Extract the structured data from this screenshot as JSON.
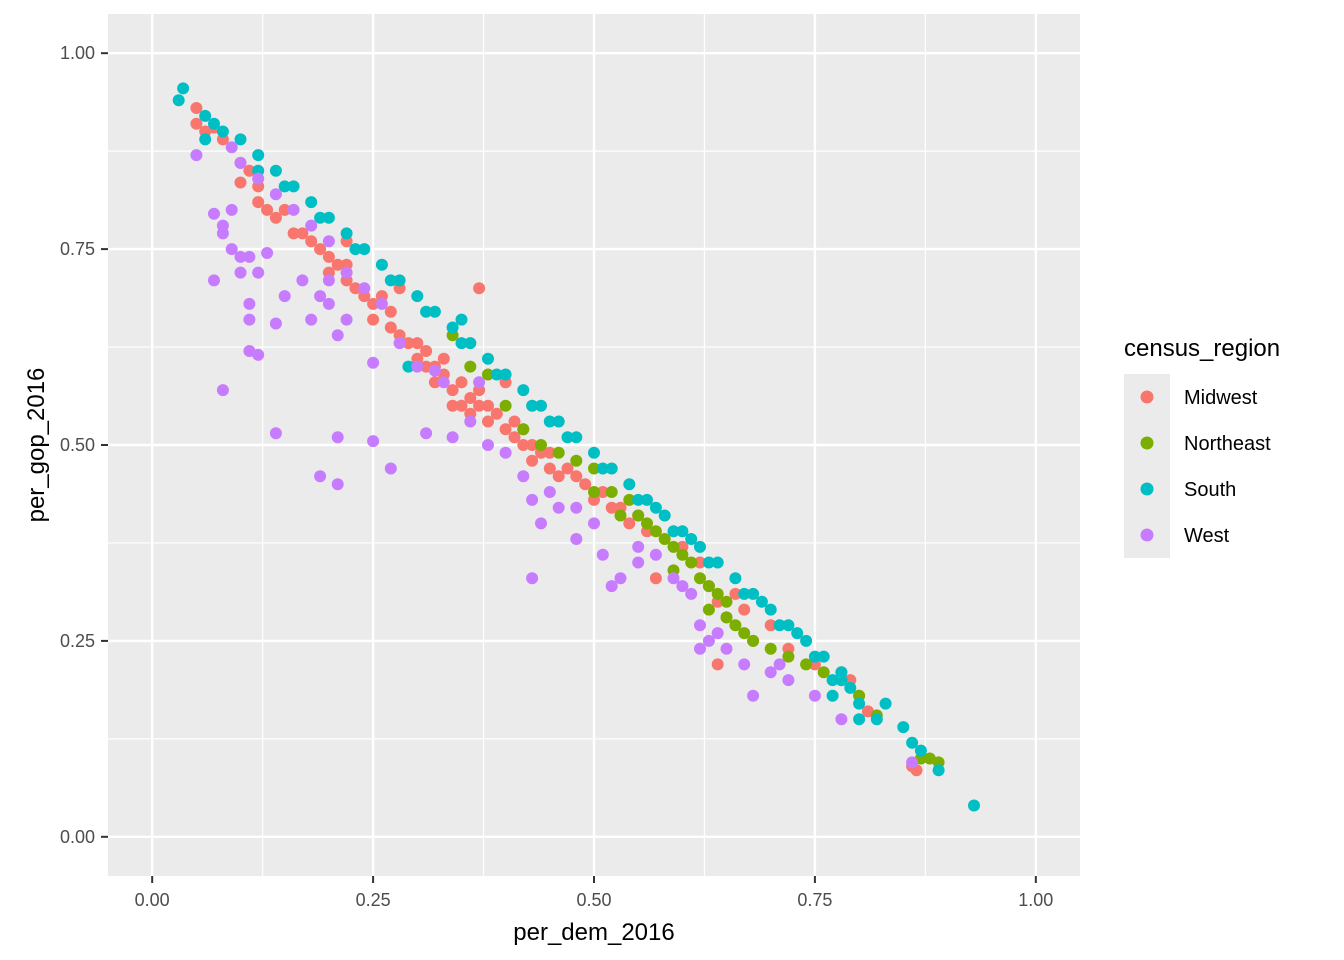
{
  "chart_data": {
    "type": "scatter",
    "title": "",
    "xlabel": "per_dem_2016",
    "ylabel": "per_gop_2016",
    "xlim": [
      -0.05,
      1.05
    ],
    "ylim": [
      -0.05,
      1.05
    ],
    "x_ticks": [
      0.0,
      0.25,
      0.5,
      0.75,
      1.0
    ],
    "x_tick_labels": [
      "0.00",
      "0.25",
      "0.50",
      "0.75",
      "1.00"
    ],
    "y_ticks": [
      0.0,
      0.25,
      0.5,
      0.75,
      1.0
    ],
    "y_tick_labels": [
      "0.00",
      "0.25",
      "0.50",
      "0.75",
      "1.00"
    ],
    "grid": true,
    "legend": {
      "title": "census_region",
      "position": "right"
    },
    "series": [
      {
        "name": "Midwest",
        "color": "#F8766D",
        "points": [
          [
            0.05,
            0.93
          ],
          [
            0.05,
            0.91
          ],
          [
            0.06,
            0.9
          ],
          [
            0.07,
            0.905
          ],
          [
            0.08,
            0.89
          ],
          [
            0.1,
            0.86
          ],
          [
            0.1,
            0.835
          ],
          [
            0.11,
            0.85
          ],
          [
            0.12,
            0.83
          ],
          [
            0.12,
            0.81
          ],
          [
            0.13,
            0.8
          ],
          [
            0.14,
            0.79
          ],
          [
            0.15,
            0.8
          ],
          [
            0.16,
            0.77
          ],
          [
            0.17,
            0.77
          ],
          [
            0.18,
            0.76
          ],
          [
            0.19,
            0.75
          ],
          [
            0.2,
            0.74
          ],
          [
            0.2,
            0.72
          ],
          [
            0.21,
            0.73
          ],
          [
            0.22,
            0.71
          ],
          [
            0.22,
            0.73
          ],
          [
            0.23,
            0.7
          ],
          [
            0.24,
            0.69
          ],
          [
            0.25,
            0.68
          ],
          [
            0.25,
            0.66
          ],
          [
            0.26,
            0.69
          ],
          [
            0.27,
            0.67
          ],
          [
            0.27,
            0.65
          ],
          [
            0.28,
            0.64
          ],
          [
            0.29,
            0.63
          ],
          [
            0.3,
            0.63
          ],
          [
            0.3,
            0.61
          ],
          [
            0.31,
            0.62
          ],
          [
            0.31,
            0.6
          ],
          [
            0.32,
            0.6
          ],
          [
            0.32,
            0.58
          ],
          [
            0.33,
            0.59
          ],
          [
            0.33,
            0.61
          ],
          [
            0.34,
            0.57
          ],
          [
            0.35,
            0.58
          ],
          [
            0.35,
            0.55
          ],
          [
            0.36,
            0.56
          ],
          [
            0.36,
            0.54
          ],
          [
            0.37,
            0.55
          ],
          [
            0.37,
            0.57
          ],
          [
            0.38,
            0.53
          ],
          [
            0.38,
            0.55
          ],
          [
            0.39,
            0.54
          ],
          [
            0.4,
            0.52
          ],
          [
            0.41,
            0.53
          ],
          [
            0.41,
            0.51
          ],
          [
            0.42,
            0.52
          ],
          [
            0.42,
            0.5
          ],
          [
            0.43,
            0.5
          ],
          [
            0.43,
            0.48
          ],
          [
            0.44,
            0.49
          ],
          [
            0.45,
            0.47
          ],
          [
            0.45,
            0.49
          ],
          [
            0.46,
            0.46
          ],
          [
            0.47,
            0.47
          ],
          [
            0.48,
            0.46
          ],
          [
            0.49,
            0.45
          ],
          [
            0.5,
            0.43
          ],
          [
            0.51,
            0.44
          ],
          [
            0.52,
            0.42
          ],
          [
            0.53,
            0.42
          ],
          [
            0.54,
            0.4
          ],
          [
            0.55,
            0.41
          ],
          [
            0.56,
            0.39
          ],
          [
            0.57,
            0.33
          ],
          [
            0.6,
            0.37
          ],
          [
            0.62,
            0.35
          ],
          [
            0.63,
            0.32
          ],
          [
            0.64,
            0.3
          ],
          [
            0.65,
            0.28
          ],
          [
            0.66,
            0.31
          ],
          [
            0.67,
            0.29
          ],
          [
            0.64,
            0.22
          ],
          [
            0.68,
            0.25
          ],
          [
            0.7,
            0.27
          ],
          [
            0.72,
            0.24
          ],
          [
            0.75,
            0.22
          ],
          [
            0.78,
            0.21
          ],
          [
            0.79,
            0.2
          ],
          [
            0.8,
            0.18
          ],
          [
            0.81,
            0.16
          ],
          [
            0.86,
            0.09
          ],
          [
            0.865,
            0.085
          ],
          [
            0.37,
            0.7
          ],
          [
            0.34,
            0.55
          ],
          [
            0.4,
            0.58
          ],
          [
            0.28,
            0.7
          ],
          [
            0.22,
            0.76
          ]
        ]
      },
      {
        "name": "Northeast",
        "color": "#7CAE00",
        "points": [
          [
            0.34,
            0.64
          ],
          [
            0.36,
            0.6
          ],
          [
            0.38,
            0.59
          ],
          [
            0.4,
            0.55
          ],
          [
            0.42,
            0.52
          ],
          [
            0.44,
            0.5
          ],
          [
            0.46,
            0.49
          ],
          [
            0.48,
            0.48
          ],
          [
            0.5,
            0.47
          ],
          [
            0.52,
            0.44
          ],
          [
            0.54,
            0.43
          ],
          [
            0.55,
            0.41
          ],
          [
            0.56,
            0.4
          ],
          [
            0.57,
            0.39
          ],
          [
            0.58,
            0.38
          ],
          [
            0.59,
            0.37
          ],
          [
            0.6,
            0.36
          ],
          [
            0.61,
            0.35
          ],
          [
            0.62,
            0.33
          ],
          [
            0.63,
            0.32
          ],
          [
            0.64,
            0.31
          ],
          [
            0.65,
            0.3
          ],
          [
            0.65,
            0.28
          ],
          [
            0.66,
            0.27
          ],
          [
            0.67,
            0.26
          ],
          [
            0.68,
            0.25
          ],
          [
            0.7,
            0.24
          ],
          [
            0.72,
            0.23
          ],
          [
            0.74,
            0.22
          ],
          [
            0.76,
            0.21
          ],
          [
            0.78,
            0.2
          ],
          [
            0.8,
            0.18
          ],
          [
            0.82,
            0.155
          ],
          [
            0.87,
            0.1
          ],
          [
            0.88,
            0.1
          ],
          [
            0.89,
            0.095
          ],
          [
            0.5,
            0.44
          ],
          [
            0.53,
            0.41
          ],
          [
            0.59,
            0.34
          ],
          [
            0.63,
            0.29
          ]
        ]
      },
      {
        "name": "South",
        "color": "#00BFC4",
        "points": [
          [
            0.035,
            0.955
          ],
          [
            0.03,
            0.94
          ],
          [
            0.06,
            0.92
          ],
          [
            0.07,
            0.91
          ],
          [
            0.08,
            0.9
          ],
          [
            0.1,
            0.89
          ],
          [
            0.12,
            0.87
          ],
          [
            0.14,
            0.85
          ],
          [
            0.16,
            0.83
          ],
          [
            0.18,
            0.81
          ],
          [
            0.2,
            0.79
          ],
          [
            0.22,
            0.77
          ],
          [
            0.24,
            0.75
          ],
          [
            0.26,
            0.73
          ],
          [
            0.28,
            0.71
          ],
          [
            0.3,
            0.69
          ],
          [
            0.32,
            0.67
          ],
          [
            0.34,
            0.65
          ],
          [
            0.36,
            0.63
          ],
          [
            0.38,
            0.61
          ],
          [
            0.4,
            0.59
          ],
          [
            0.42,
            0.57
          ],
          [
            0.44,
            0.55
          ],
          [
            0.46,
            0.53
          ],
          [
            0.48,
            0.51
          ],
          [
            0.5,
            0.49
          ],
          [
            0.52,
            0.47
          ],
          [
            0.54,
            0.45
          ],
          [
            0.56,
            0.43
          ],
          [
            0.58,
            0.41
          ],
          [
            0.6,
            0.39
          ],
          [
            0.62,
            0.37
          ],
          [
            0.64,
            0.35
          ],
          [
            0.66,
            0.33
          ],
          [
            0.68,
            0.31
          ],
          [
            0.7,
            0.29
          ],
          [
            0.72,
            0.27
          ],
          [
            0.74,
            0.25
          ],
          [
            0.76,
            0.23
          ],
          [
            0.78,
            0.21
          ],
          [
            0.79,
            0.19
          ],
          [
            0.8,
            0.17
          ],
          [
            0.82,
            0.15
          ],
          [
            0.83,
            0.17
          ],
          [
            0.85,
            0.14
          ],
          [
            0.86,
            0.12
          ],
          [
            0.87,
            0.11
          ],
          [
            0.89,
            0.085
          ],
          [
            0.93,
            0.04
          ],
          [
            0.06,
            0.89
          ],
          [
            0.12,
            0.85
          ],
          [
            0.15,
            0.83
          ],
          [
            0.19,
            0.79
          ],
          [
            0.23,
            0.75
          ],
          [
            0.27,
            0.71
          ],
          [
            0.31,
            0.67
          ],
          [
            0.35,
            0.63
          ],
          [
            0.39,
            0.59
          ],
          [
            0.43,
            0.55
          ],
          [
            0.47,
            0.51
          ],
          [
            0.51,
            0.47
          ],
          [
            0.55,
            0.43
          ],
          [
            0.59,
            0.39
          ],
          [
            0.63,
            0.35
          ],
          [
            0.67,
            0.31
          ],
          [
            0.71,
            0.27
          ],
          [
            0.75,
            0.23
          ],
          [
            0.77,
            0.2
          ],
          [
            0.8,
            0.15
          ],
          [
            0.77,
            0.18
          ],
          [
            0.29,
            0.6
          ],
          [
            0.35,
            0.66
          ],
          [
            0.45,
            0.53
          ],
          [
            0.57,
            0.42
          ],
          [
            0.61,
            0.38
          ],
          [
            0.69,
            0.3
          ],
          [
            0.73,
            0.26
          ],
          [
            0.78,
            0.2
          ]
        ]
      },
      {
        "name": "West",
        "color": "#C77CFF",
        "points": [
          [
            0.05,
            0.87
          ],
          [
            0.07,
            0.71
          ],
          [
            0.07,
            0.795
          ],
          [
            0.08,
            0.77
          ],
          [
            0.08,
            0.78
          ],
          [
            0.09,
            0.8
          ],
          [
            0.09,
            0.75
          ],
          [
            0.1,
            0.74
          ],
          [
            0.1,
            0.72
          ],
          [
            0.11,
            0.74
          ],
          [
            0.11,
            0.68
          ],
          [
            0.11,
            0.66
          ],
          [
            0.11,
            0.62
          ],
          [
            0.12,
            0.615
          ],
          [
            0.12,
            0.72
          ],
          [
            0.13,
            0.745
          ],
          [
            0.14,
            0.655
          ],
          [
            0.14,
            0.515
          ],
          [
            0.08,
            0.57
          ],
          [
            0.15,
            0.69
          ],
          [
            0.17,
            0.71
          ],
          [
            0.18,
            0.66
          ],
          [
            0.19,
            0.69
          ],
          [
            0.2,
            0.68
          ],
          [
            0.2,
            0.71
          ],
          [
            0.21,
            0.64
          ],
          [
            0.22,
            0.66
          ],
          [
            0.21,
            0.51
          ],
          [
            0.19,
            0.46
          ],
          [
            0.21,
            0.45
          ],
          [
            0.25,
            0.505
          ],
          [
            0.25,
            0.605
          ],
          [
            0.27,
            0.47
          ],
          [
            0.31,
            0.515
          ],
          [
            0.09,
            0.88
          ],
          [
            0.1,
            0.86
          ],
          [
            0.12,
            0.84
          ],
          [
            0.14,
            0.82
          ],
          [
            0.16,
            0.8
          ],
          [
            0.18,
            0.78
          ],
          [
            0.2,
            0.76
          ],
          [
            0.22,
            0.72
          ],
          [
            0.24,
            0.7
          ],
          [
            0.26,
            0.68
          ],
          [
            0.28,
            0.63
          ],
          [
            0.3,
            0.6
          ],
          [
            0.32,
            0.595
          ],
          [
            0.33,
            0.58
          ],
          [
            0.36,
            0.53
          ],
          [
            0.38,
            0.5
          ],
          [
            0.4,
            0.49
          ],
          [
            0.42,
            0.46
          ],
          [
            0.43,
            0.43
          ],
          [
            0.44,
            0.4
          ],
          [
            0.45,
            0.44
          ],
          [
            0.46,
            0.42
          ],
          [
            0.48,
            0.38
          ],
          [
            0.5,
            0.4
          ],
          [
            0.51,
            0.36
          ],
          [
            0.52,
            0.32
          ],
          [
            0.53,
            0.33
          ],
          [
            0.55,
            0.37
          ],
          [
            0.57,
            0.36
          ],
          [
            0.59,
            0.33
          ],
          [
            0.6,
            0.32
          ],
          [
            0.61,
            0.31
          ],
          [
            0.62,
            0.27
          ],
          [
            0.63,
            0.25
          ],
          [
            0.64,
            0.26
          ],
          [
            0.65,
            0.24
          ],
          [
            0.67,
            0.22
          ],
          [
            0.68,
            0.18
          ],
          [
            0.7,
            0.21
          ],
          [
            0.72,
            0.2
          ],
          [
            0.75,
            0.18
          ],
          [
            0.78,
            0.15
          ],
          [
            0.86,
            0.095
          ],
          [
            0.43,
            0.33
          ],
          [
            0.37,
            0.58
          ],
          [
            0.34,
            0.51
          ],
          [
            0.48,
            0.42
          ],
          [
            0.55,
            0.35
          ],
          [
            0.62,
            0.24
          ],
          [
            0.71,
            0.22
          ]
        ]
      }
    ]
  }
}
